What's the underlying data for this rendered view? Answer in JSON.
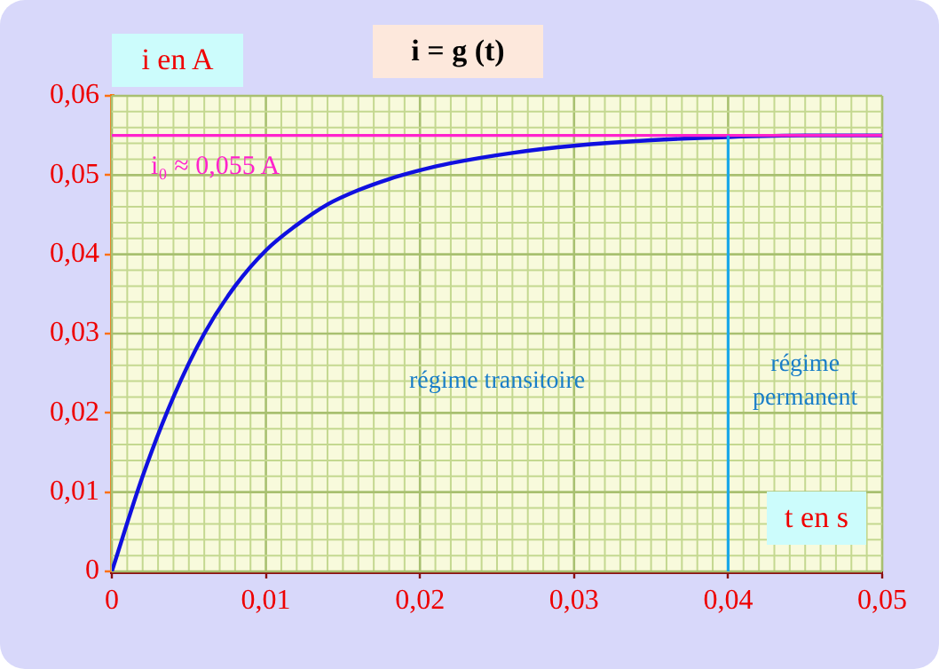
{
  "chart_data": {
    "type": "line",
    "title": "i = g (t)",
    "xlabel": "t en s",
    "ylabel": "i en A",
    "x": [
      0,
      0.002,
      0.004,
      0.006,
      0.008,
      0.01,
      0.012,
      0.014,
      0.016,
      0.018,
      0.02,
      0.022,
      0.026,
      0.03,
      0.035,
      0.04,
      0.045,
      0.05
    ],
    "series": [
      {
        "color": "#1010e0",
        "values": [
          0,
          0.012,
          0.022,
          0.03,
          0.036,
          0.0405,
          0.0437,
          0.0463,
          0.0481,
          0.0495,
          0.0506,
          0.0515,
          0.0528,
          0.0537,
          0.0544,
          0.0548,
          0.055,
          0.055
        ]
      }
    ],
    "xlim": [
      0,
      0.05
    ],
    "xticks": [
      {
        "value": 0,
        "label": "0"
      },
      {
        "value": 0.001,
        "label": null
      },
      {
        "value": 0.002,
        "label": null
      },
      {
        "value": 0.003,
        "label": null
      },
      {
        "value": 0.004,
        "label": null
      },
      {
        "value": 0.005,
        "label": null
      },
      {
        "value": 0.006,
        "label": null
      },
      {
        "value": 0.007,
        "label": null
      },
      {
        "value": 0.008,
        "label": null
      },
      {
        "value": 0.009,
        "label": null
      },
      {
        "value": 0.01,
        "label": "0,01"
      },
      {
        "value": 0.011,
        "label": null
      },
      {
        "value": 0.012,
        "label": null
      },
      {
        "value": 0.013,
        "label": null
      },
      {
        "value": 0.014,
        "label": null
      },
      {
        "value": 0.015,
        "label": null
      },
      {
        "value": 0.016,
        "label": null
      },
      {
        "value": 0.017,
        "label": null
      },
      {
        "value": 0.018,
        "label": null
      },
      {
        "value": 0.019,
        "label": null
      },
      {
        "value": 0.02,
        "label": "0,02"
      },
      {
        "value": 0.021,
        "label": null
      },
      {
        "value": 0.022,
        "label": null
      },
      {
        "value": 0.023,
        "label": null
      },
      {
        "value": 0.024,
        "label": null
      },
      {
        "value": 0.025,
        "label": null
      },
      {
        "value": 0.026,
        "label": null
      },
      {
        "value": 0.027,
        "label": null
      },
      {
        "value": 0.028,
        "label": null
      },
      {
        "value": 0.029,
        "label": null
      },
      {
        "value": 0.03,
        "label": "0,03"
      },
      {
        "value": 0.031,
        "label": null
      },
      {
        "value": 0.032,
        "label": null
      },
      {
        "value": 0.033,
        "label": null
      },
      {
        "value": 0.034,
        "label": null
      },
      {
        "value": 0.035,
        "label": null
      },
      {
        "value": 0.036,
        "label": null
      },
      {
        "value": 0.037,
        "label": null
      },
      {
        "value": 0.038,
        "label": null
      },
      {
        "value": 0.039,
        "label": null
      },
      {
        "value": 0.04,
        "label": "0,04"
      },
      {
        "value": 0.041,
        "label": null
      },
      {
        "value": 0.042,
        "label": null
      },
      {
        "value": 0.043,
        "label": null
      },
      {
        "value": 0.044,
        "label": null
      },
      {
        "value": 0.045,
        "label": null
      },
      {
        "value": 0.046,
        "label": null
      },
      {
        "value": 0.047,
        "label": null
      },
      {
        "value": 0.048,
        "label": null
      },
      {
        "value": 0.049,
        "label": null
      },
      {
        "value": 0.05,
        "label": "0,05"
      }
    ],
    "ylim": [
      0,
      0.06
    ],
    "yticks": [
      {
        "value": 0,
        "label": "0"
      },
      {
        "value": 0.002,
        "label": null
      },
      {
        "value": 0.004,
        "label": null
      },
      {
        "value": 0.006,
        "label": null
      },
      {
        "value": 0.008,
        "label": null
      },
      {
        "value": 0.01,
        "label": "0,01"
      },
      {
        "value": 0.012,
        "label": null
      },
      {
        "value": 0.014,
        "label": null
      },
      {
        "value": 0.016,
        "label": null
      },
      {
        "value": 0.018,
        "label": null
      },
      {
        "value": 0.02,
        "label": "0,02"
      },
      {
        "value": 0.022,
        "label": null
      },
      {
        "value": 0.024,
        "label": null
      },
      {
        "value": 0.026,
        "label": null
      },
      {
        "value": 0.028,
        "label": null
      },
      {
        "value": 0.03,
        "label": "0,03"
      },
      {
        "value": 0.032,
        "label": null
      },
      {
        "value": 0.034,
        "label": null
      },
      {
        "value": 0.036,
        "label": null
      },
      {
        "value": 0.038,
        "label": null
      },
      {
        "value": 0.04,
        "label": "0,04"
      },
      {
        "value": 0.042,
        "label": null
      },
      {
        "value": 0.044,
        "label": null
      },
      {
        "value": 0.046,
        "label": null
      },
      {
        "value": 0.048,
        "label": null
      },
      {
        "value": 0.05,
        "label": "0,05"
      },
      {
        "value": 0.052,
        "label": null
      },
      {
        "value": 0.054,
        "label": null
      },
      {
        "value": 0.056,
        "label": null
      },
      {
        "value": 0.058,
        "label": null
      },
      {
        "value": 0.06,
        "label": "0,06"
      }
    ],
    "ref_lines": [
      {
        "axis": "y",
        "value": 0.055,
        "label": "i₀ ≈ 0,055 A",
        "color": "#ff22cc"
      },
      {
        "axis": "x",
        "value": 0.04,
        "color": "#1aa8e8"
      }
    ],
    "annotations": [
      "régime transitoire",
      "régime\npermanent"
    ],
    "grid": true,
    "marker": "none",
    "line_style": "solid",
    "legend": false
  }
}
